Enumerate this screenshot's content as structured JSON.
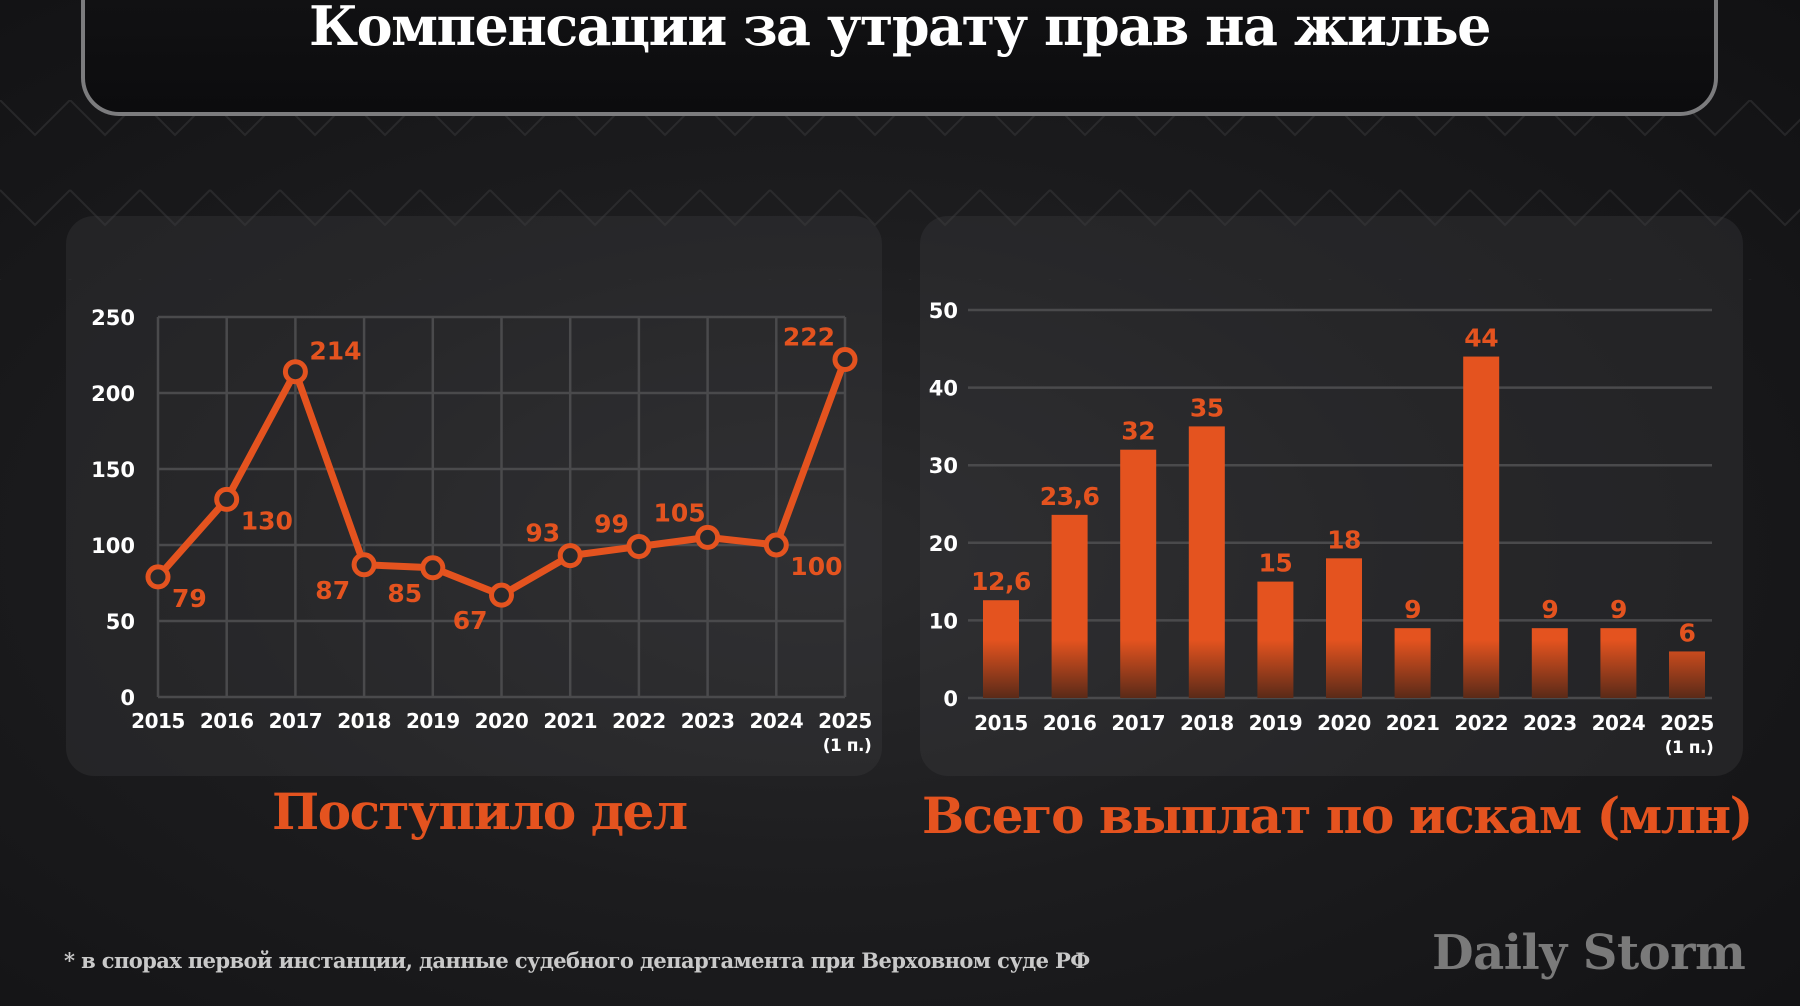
{
  "header": {
    "title": "Компенсации за утрату прав на жилье"
  },
  "colors": {
    "accent": "#e4531f",
    "background": "#1c1c1e",
    "grid": "#4a4a4c",
    "axis_text": "#ffffff",
    "logo": "#7a7a7a"
  },
  "left_chart": {
    "subtitle": "Поступило дел"
  },
  "right_chart": {
    "subtitle": "Всего выплат по искам (млн)"
  },
  "footnote": "* в спорах первой инстанции, данные судебного департамента при Верховном суде РФ",
  "logo": "Daily Storm",
  "chart_data": [
    {
      "type": "line",
      "title": "Поступило дел",
      "categories": [
        "2015",
        "2016",
        "2017",
        "2018",
        "2019",
        "2020",
        "2021",
        "2022",
        "2023",
        "2024",
        "2025 (1 п.)"
      ],
      "category_labels": [
        [
          "2015"
        ],
        [
          "2016"
        ],
        [
          "2017"
        ],
        [
          "2018"
        ],
        [
          "2019"
        ],
        [
          "2020"
        ],
        [
          "2021"
        ],
        [
          "2022"
        ],
        [
          "2023"
        ],
        [
          "2024"
        ],
        [
          "2025",
          "(1 п.)"
        ]
      ],
      "values": [
        79,
        130,
        214,
        87,
        85,
        67,
        93,
        99,
        105,
        100,
        222
      ],
      "data_labels": [
        "79",
        "130",
        "214",
        "87",
        "85",
        "67",
        "93",
        "99",
        "105",
        "100",
        "222"
      ],
      "label_pos": [
        "br",
        "br",
        "tr",
        "bl",
        "b",
        "bl",
        "tl",
        "tl",
        "t",
        "br",
        "tl"
      ],
      "xlabel": "",
      "ylabel": "",
      "yticks": [
        0,
        50,
        100,
        150,
        200,
        250
      ],
      "ylim": [
        0,
        250
      ],
      "grid": true,
      "legend": null
    },
    {
      "type": "bar",
      "title": "Всего выплат по искам (млн)",
      "categories": [
        "2015",
        "2016",
        "2017",
        "2018",
        "2019",
        "2020",
        "2021",
        "2022",
        "2023",
        "2024",
        "2025 (1 п.)"
      ],
      "category_labels": [
        [
          "2015"
        ],
        [
          "2016"
        ],
        [
          "2017"
        ],
        [
          "2018"
        ],
        [
          "2019"
        ],
        [
          "2020"
        ],
        [
          "2021"
        ],
        [
          "2022"
        ],
        [
          "2023"
        ],
        [
          "2024"
        ],
        [
          "2025",
          "(1 п.)"
        ]
      ],
      "values": [
        12.6,
        23.6,
        32,
        35,
        15,
        18,
        9,
        44,
        9,
        9,
        6
      ],
      "data_labels": [
        "12,6",
        "23,6",
        "32",
        "35",
        "15",
        "18",
        "9",
        "44",
        "9",
        "9",
        "6"
      ],
      "xlabel": "",
      "ylabel": "млн",
      "yticks": [
        0,
        10,
        20,
        30,
        40,
        50
      ],
      "ylim": [
        0,
        50
      ],
      "grid": "horizontal",
      "legend": null
    }
  ]
}
